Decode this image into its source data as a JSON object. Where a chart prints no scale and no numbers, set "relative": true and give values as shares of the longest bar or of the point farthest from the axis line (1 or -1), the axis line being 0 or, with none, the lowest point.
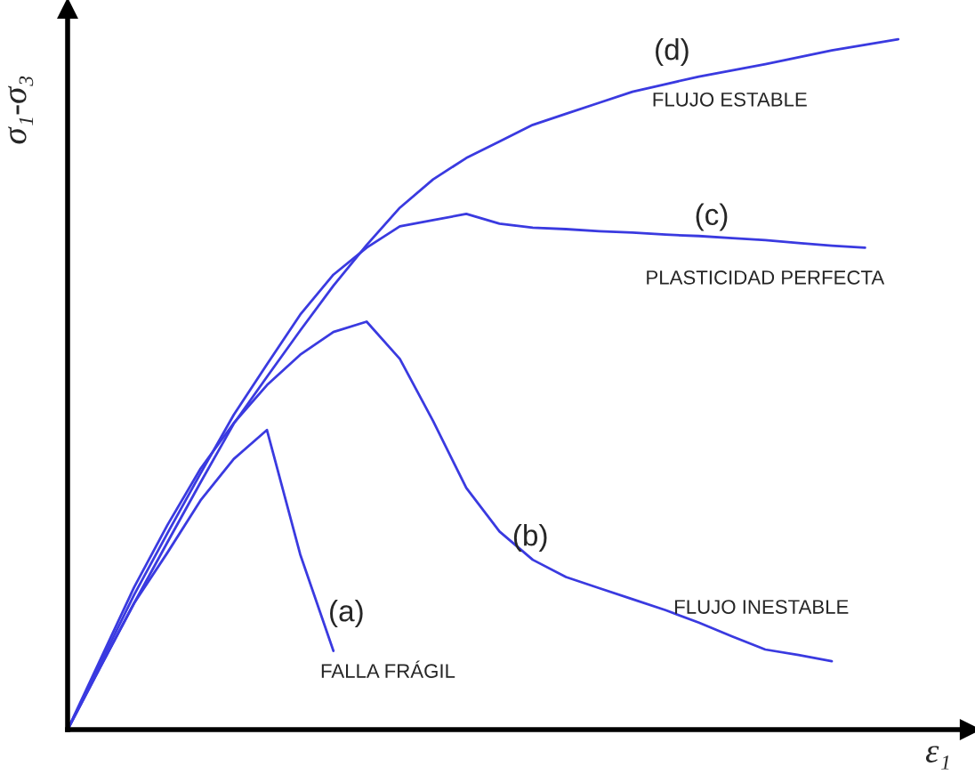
{
  "chart_data": {
    "type": "line",
    "relative": true,
    "xlabel": "ε₁",
    "ylabel": "σ₁-σ₃",
    "categories": [
      null,
      null,
      null,
      null,
      null,
      null,
      null,
      null,
      null,
      null,
      null,
      null,
      null,
      null,
      null,
      null,
      null,
      null,
      null,
      null,
      null,
      null,
      null,
      null,
      null,
      null
    ],
    "series": [
      {
        "color": "#3a3ae0",
        "values": [
          0,
          0.092,
          0.183,
          0.256,
          0.332,
          0.392,
          0.434,
          0.254,
          0.114,
          null,
          null,
          null,
          null,
          null,
          null,
          null,
          null,
          null,
          null,
          null,
          null,
          null,
          null,
          null,
          null,
          null
        ]
      },
      {
        "color": "#3a3ae0",
        "values": [
          0,
          0.103,
          0.206,
          0.296,
          0.378,
          0.444,
          0.499,
          0.543,
          0.576,
          0.591,
          0.537,
          0.447,
          0.35,
          0.287,
          0.246,
          0.221,
          0.205,
          0.189,
          0.173,
          0.155,
          0.135,
          0.116,
          0.108,
          0.099,
          null,
          null
        ]
      },
      {
        "color": "#3a3ae0",
        "values": [
          0,
          0.097,
          0.195,
          0.284,
          0.371,
          0.456,
          0.529,
          0.601,
          0.659,
          0.698,
          0.729,
          0.738,
          0.747,
          0.733,
          0.727,
          0.725,
          0.722,
          0.72,
          0.717,
          0.715,
          0.712,
          0.709,
          0.705,
          0.701,
          0.698,
          null
        ]
      },
      {
        "color": "#3a3ae0",
        "values": [
          0,
          0.092,
          0.183,
          0.271,
          0.358,
          0.443,
          0.511,
          0.578,
          0.643,
          0.702,
          0.756,
          0.797,
          0.828,
          0.852,
          0.876,
          0.892,
          0.908,
          0.924,
          0.935,
          0.946,
          0.955,
          0.964,
          0.974,
          0.984,
          0.992,
          1.0
        ]
      }
    ],
    "annotations": [
      "(d)",
      "FLUJO ESTABLE",
      "(c)",
      "PLASTICIDAD PERFECTA",
      "(b)",
      "FLUJO INESTABLE",
      "(a)",
      "FALLA FRÁGIL"
    ]
  }
}
